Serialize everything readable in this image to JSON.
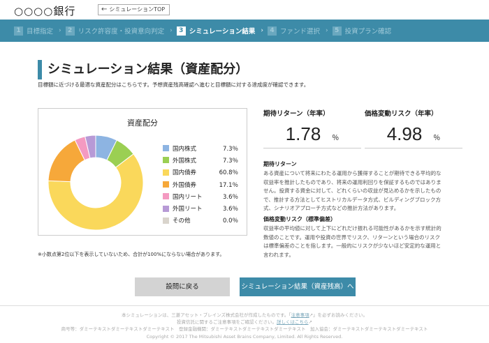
{
  "header": {
    "bank_name": "○○○○銀行",
    "back_button": "シミュレーションTOP"
  },
  "steps": [
    {
      "num": "1",
      "label": "目標指定"
    },
    {
      "num": "2",
      "label": "リスク許容度・投資意向判定"
    },
    {
      "num": "3",
      "label": "シミュレーション結果"
    },
    {
      "num": "4",
      "label": "ファンド選択"
    },
    {
      "num": "5",
      "label": "投資プラン確認"
    }
  ],
  "page": {
    "title": "シミュレーション結果（資産配分）",
    "lead": "目標額に近づける最適な資産配分はこちらです。予想資産残高確認へ進むと目標額に対する達成度が確認できます。"
  },
  "chart_data": {
    "type": "pie",
    "title": "資産配分",
    "categories": [
      "国内株式",
      "外国株式",
      "国内債券",
      "外国債券",
      "国内リート",
      "外国リート",
      "その他"
    ],
    "values": [
      7.3,
      7.3,
      60.8,
      17.1,
      3.6,
      3.6,
      0.0
    ],
    "labels": [
      "7.3％",
      "7.3％",
      "60.8％",
      "17.1％",
      "3.6％",
      "3.6％",
      "0.0％"
    ],
    "colors": [
      "#8db4e2",
      "#9bcf53",
      "#fad85b",
      "#f6a83a",
      "#f49ac1",
      "#b79ad6",
      "#d9d4cc"
    ],
    "legend": "right"
  },
  "note": "※小数点第2位以下を表示していないため、合計が100%にならない場合があります。",
  "metrics": {
    "return": {
      "label": "期待リターン（年率）",
      "value": "1.78",
      "unit": "％"
    },
    "risk": {
      "label": "価格変動リスク（年率）",
      "value": "4.98",
      "unit": "％"
    }
  },
  "descriptions": {
    "return": {
      "heading": "期待リターン",
      "body": "ある資産について将来にわたる運用から獲得することが期待できる平均的な収益率を推計したものであり、将来の運用利回りを保証するものではありません。投資する資金に対して、どれくらいの収益が見込めるかを示したもので、推計する方法としてヒストリカルデータ方式、ビルディングブロック方式、シナリオアプローチ方式などの推計方法があります。"
    },
    "risk": {
      "heading": "価格変動リスク（標準偏差）",
      "body": "収益率の平均値に対して上下にどれだけ振れる可能性があるかを示す統計的数値のことです。運用や投資の世界でリスク、リターンという場合のリスクは標準偏差のことを指します。一般的にリスクが少ないほど安定的な運用と言われます。"
    }
  },
  "buttons": {
    "back": "設問に戻る",
    "next": "シミュレーション結果（資産残高）へ"
  },
  "footer": {
    "line1_a": "本シミュレーションは、三菱アセット・ブレインズ株式会社が作成したものです。「",
    "line1_link": "注意事項",
    "line1_b": "」を必ずお読みください。",
    "line2_a": "投資信託に関するご注意事項をご確認ください。",
    "line2_link": "詳しくはこちら",
    "line3": "商号等：ダミーテキストダミーテキストダミーテキスト　登録金融機関：ダミーテキストダミーテキストダミーテキスト　加入協会：ダミーテキストダミーテキストダミーテキスト",
    "copyright": "Copyright © 2017 The Mitsubishi Asset Brains Company, Limited. All Rights Reserved."
  },
  "icons": {
    "back": "arrow-left-icon",
    "external": "external-link-icon"
  }
}
